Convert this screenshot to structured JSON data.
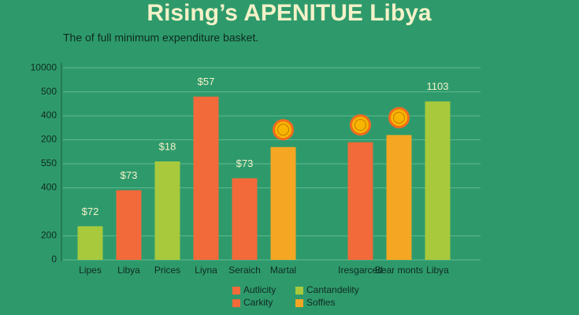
{
  "chart_data": {
    "type": "bar",
    "title": "Rising’s APENITUE Libya",
    "subtitle": "The of full minimum expenditure basket.",
    "categories": [
      "Lipes",
      "Libya",
      "Prices",
      "Liyna",
      "Seraich",
      "Martal",
      null,
      "Iresgarced",
      "Bear monts",
      "Libya"
    ],
    "values": [
      1.4,
      2.9,
      4.1,
      6.8,
      3.4,
      4.7,
      null,
      4.9,
      5.2,
      6.6
    ],
    "colors": [
      "#a8c93c",
      "#f2693a",
      "#a8c93c",
      "#f2693a",
      "#f2693a",
      "#f5a623",
      null,
      "#f2693a",
      "#f5a623",
      "#a8c93c"
    ],
    "annotations": [
      "$72",
      "$73",
      "$18",
      "$57",
      "$73",
      null,
      null,
      null,
      null,
      "1103"
    ],
    "ylim": [
      0,
      8.2
    ],
    "yticks": [
      0,
      {
        "value": 1,
        "label": "200"
      },
      {
        "value": 3,
        "label": "400"
      },
      {
        "value": 4,
        "label": "550"
      },
      {
        "value": 5,
        "label": "200"
      },
      {
        "value": 6,
        "label": "400"
      },
      {
        "value": 7,
        "label": "500"
      },
      {
        "value": 8,
        "label": "10000"
      }
    ],
    "grid": true,
    "legend": [
      {
        "name": "Autlicity",
        "color": "#f2693a"
      },
      {
        "name": "Carkity",
        "color": "#f2693a"
      },
      {
        "name": "Cantandelity",
        "color": "#a8c93c"
      },
      {
        "name": "Soffies",
        "color": "#f5a623"
      }
    ]
  }
}
